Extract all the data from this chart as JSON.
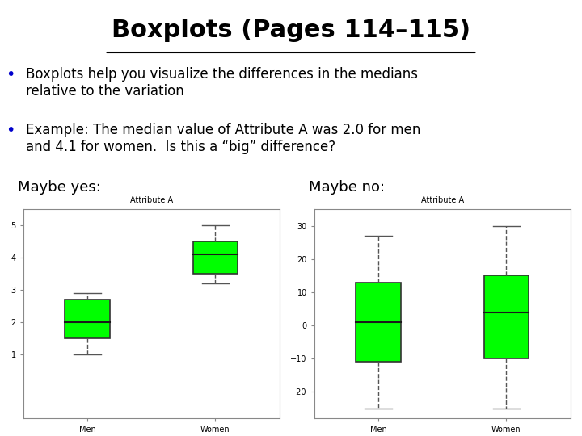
{
  "title": "Boxplots (Pages 114–115)",
  "title_fontsize": 22,
  "title_underline": true,
  "bg_color": "#ffffff",
  "bullet_color": "#0000cc",
  "text_lines": [
    "Boxplots help you visualize the differences in the medians relative to the variation",
    "Example: The median value of Attribute A was 2.0 for men and 4.1 for women.  Is this a “big” difference?"
  ],
  "maybe_yes_label": "Maybe yes:",
  "maybe_no_label": "Maybe no:",
  "box_color": "#00ff00",
  "box_edge_color": "#333333",
  "whisker_color": "#555555",
  "median_color": "#1a1a1a",
  "subplot_title": "Attribute A",
  "subplot_title_fontsize": 7,
  "categories": [
    "Men",
    "Women"
  ],
  "plot1": {
    "men": {
      "q1": 1.5,
      "median": 2.0,
      "q3": 2.7,
      "whisker_low": 1.0,
      "whisker_high": 2.9
    },
    "women": {
      "q1": 3.5,
      "median": 4.1,
      "q3": 4.5,
      "whisker_low": 3.2,
      "whisker_high": 5.0
    },
    "ylim": [
      -1,
      5.5
    ],
    "yticks": [
      1,
      2,
      3,
      4,
      5
    ]
  },
  "plot2": {
    "men": {
      "q1": -11.0,
      "median": 1.0,
      "q3": 13.0,
      "whisker_low": -25.0,
      "whisker_high": 27.0
    },
    "women": {
      "q1": -10.0,
      "median": 4.0,
      "q3": 15.0,
      "whisker_low": -25.0,
      "whisker_high": 30.0
    },
    "ylim": [
      -28,
      35
    ],
    "yticks": [
      -20,
      -10,
      0,
      10,
      20,
      30
    ]
  }
}
